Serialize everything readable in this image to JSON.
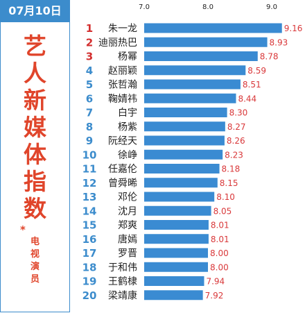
{
  "header": {
    "date": "07月10日"
  },
  "sidebar": {
    "title_chars": [
      "艺",
      "人",
      "新",
      "媒",
      "体",
      "指",
      "数"
    ],
    "star": "*",
    "subtitle_chars": [
      "电",
      "视",
      "演",
      "员"
    ]
  },
  "colors": {
    "accent": "#3c8ccc",
    "bar": "#3a8bd2",
    "title_red": "#e0452b",
    "value_red": "#d9383a",
    "rank_top3": "#d32f2f",
    "rank_rest": "#3c8ccc"
  },
  "chart_data": {
    "type": "bar",
    "orientation": "horizontal",
    "xlim": [
      7.0,
      10.0
    ],
    "xticks": [
      "7.0",
      "8.0",
      "9.0",
      "10.0"
    ],
    "grid": false,
    "categories": [
      "朱一龙",
      "迪丽热巴",
      "杨幂",
      "赵丽颖",
      "张哲瀚",
      "鞠婧祎",
      "白宇",
      "杨紫",
      "阮经天",
      "徐峥",
      "任嘉伦",
      "曾舜晞",
      "邓伦",
      "沈月",
      "郑爽",
      "唐嫣",
      "罗晋",
      "于和伟",
      "王鹤棣",
      "梁靖康"
    ],
    "ranks": [
      "1",
      "2",
      "3",
      "4",
      "5",
      "6",
      "7",
      "8",
      "9",
      "10",
      "11",
      "12",
      "13",
      "14",
      "15",
      "16",
      "17",
      "18",
      "19",
      "20"
    ],
    "values": [
      9.16,
      8.93,
      8.78,
      8.59,
      8.51,
      8.44,
      8.3,
      8.27,
      8.26,
      8.23,
      8.18,
      8.15,
      8.1,
      8.05,
      8.01,
      8.01,
      8.0,
      8.0,
      7.94,
      7.92
    ],
    "value_labels": [
      "9.16",
      "8.93",
      "8.78",
      "8.59",
      "8.51",
      "8.44",
      "8.30",
      "8.27",
      "8.26",
      "8.23",
      "8.18",
      "8.15",
      "8.10",
      "8.05",
      "8.01",
      "8.01",
      "8.00",
      "8.00",
      "7.94",
      "7.92"
    ]
  }
}
